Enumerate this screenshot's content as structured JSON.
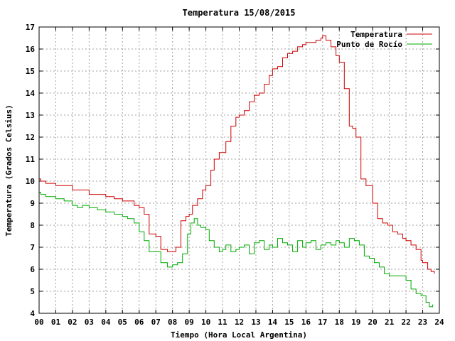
{
  "chart_data": {
    "type": "line",
    "title": "Temperatura 15/08/2015",
    "xlabel": "Tiempo (Hora Local Argentina)",
    "ylabel": "Temperatura (Grados Celsius)",
    "xlim": [
      0,
      24
    ],
    "ylim": [
      4,
      17
    ],
    "x_ticks": [
      "00",
      "01",
      "02",
      "03",
      "04",
      "05",
      "06",
      "07",
      "08",
      "09",
      "10",
      "11",
      "12",
      "13",
      "14",
      "15",
      "16",
      "17",
      "18",
      "19",
      "20",
      "21",
      "22",
      "23",
      "24"
    ],
    "y_ticks": [
      4,
      5,
      6,
      7,
      8,
      9,
      10,
      11,
      12,
      13,
      14,
      15,
      16,
      17
    ],
    "grid": true,
    "legend_position": "top-right",
    "series": [
      {
        "name": "Temperatura",
        "color": "#cc0000",
        "x": [
          0.0,
          0.1,
          0.4,
          0.8,
          1.0,
          1.5,
          2.0,
          2.5,
          3.0,
          3.5,
          4.0,
          4.5,
          5.0,
          5.3,
          5.7,
          6.0,
          6.3,
          6.6,
          7.0,
          7.3,
          7.7,
          8.0,
          8.2,
          8.5,
          8.8,
          9.0,
          9.2,
          9.5,
          9.8,
          10.0,
          10.3,
          10.5,
          10.8,
          11.0,
          11.2,
          11.5,
          11.8,
          12.0,
          12.3,
          12.6,
          12.9,
          13.2,
          13.5,
          13.8,
          14.0,
          14.3,
          14.6,
          14.9,
          15.2,
          15.5,
          15.8,
          16.0,
          16.3,
          16.6,
          16.9,
          17.0,
          17.2,
          17.5,
          17.8,
          18.0,
          18.3,
          18.6,
          18.8,
          19.0,
          19.3,
          19.6,
          20.0,
          20.3,
          20.6,
          20.9,
          21.2,
          21.5,
          21.8,
          22.0,
          22.3,
          22.6,
          22.9,
          23.0,
          23.3,
          23.5,
          23.7
        ],
        "y": [
          10.1,
          10.0,
          9.9,
          9.9,
          9.8,
          9.8,
          9.6,
          9.6,
          9.4,
          9.4,
          9.3,
          9.2,
          9.1,
          9.1,
          8.9,
          8.8,
          8.5,
          7.6,
          7.5,
          6.9,
          6.8,
          6.8,
          7.0,
          8.2,
          8.4,
          8.5,
          8.9,
          9.2,
          9.6,
          9.8,
          10.5,
          11.0,
          11.3,
          11.3,
          11.8,
          12.5,
          12.9,
          13.0,
          13.2,
          13.6,
          13.9,
          14.0,
          14.4,
          14.8,
          15.1,
          15.2,
          15.6,
          15.8,
          15.9,
          16.1,
          16.2,
          16.3,
          16.3,
          16.4,
          16.5,
          16.6,
          16.4,
          16.1,
          15.7,
          15.4,
          14.2,
          12.5,
          12.4,
          12.0,
          10.1,
          9.8,
          9.0,
          8.3,
          8.1,
          8.0,
          7.7,
          7.6,
          7.4,
          7.3,
          7.1,
          6.9,
          6.4,
          6.3,
          6.0,
          5.9,
          5.8
        ]
      },
      {
        "name": "Punto de Rocío",
        "color": "#00aa00",
        "x": [
          0.0,
          0.1,
          0.4,
          0.8,
          1.0,
          1.5,
          2.0,
          2.3,
          2.6,
          3.0,
          3.5,
          4.0,
          4.5,
          5.0,
          5.3,
          5.7,
          6.0,
          6.3,
          6.6,
          7.0,
          7.3,
          7.7,
          8.0,
          8.3,
          8.6,
          8.9,
          9.1,
          9.3,
          9.5,
          9.7,
          10.0,
          10.2,
          10.5,
          10.8,
          11.0,
          11.2,
          11.5,
          11.8,
          12.0,
          12.3,
          12.6,
          12.9,
          13.2,
          13.5,
          13.8,
          14.0,
          14.3,
          14.6,
          14.9,
          15.2,
          15.5,
          15.8,
          16.0,
          16.3,
          16.6,
          16.9,
          17.2,
          17.5,
          17.8,
          18.0,
          18.3,
          18.6,
          18.9,
          19.2,
          19.5,
          19.8,
          20.1,
          20.4,
          20.7,
          21.0,
          21.3,
          21.6,
          22.0,
          22.3,
          22.6,
          22.9,
          23.2,
          23.4,
          23.6
        ],
        "y": [
          9.5,
          9.4,
          9.3,
          9.3,
          9.2,
          9.1,
          8.9,
          8.8,
          8.9,
          8.8,
          8.7,
          8.6,
          8.5,
          8.4,
          8.3,
          8.1,
          7.7,
          7.3,
          6.8,
          6.8,
          6.3,
          6.1,
          6.2,
          6.3,
          6.7,
          7.6,
          8.1,
          8.3,
          8.0,
          7.9,
          7.8,
          7.3,
          7.0,
          6.8,
          6.9,
          7.1,
          6.8,
          6.9,
          7.0,
          7.1,
          6.7,
          7.2,
          7.3,
          6.9,
          7.1,
          7.0,
          7.4,
          7.2,
          7.1,
          6.8,
          7.3,
          7.0,
          7.2,
          7.3,
          6.9,
          7.1,
          7.2,
          7.1,
          7.3,
          7.2,
          7.0,
          7.4,
          7.3,
          7.1,
          6.6,
          6.5,
          6.3,
          6.1,
          5.8,
          5.7,
          5.7,
          5.7,
          5.5,
          5.1,
          4.9,
          4.8,
          4.5,
          4.3,
          4.4
        ]
      }
    ]
  }
}
